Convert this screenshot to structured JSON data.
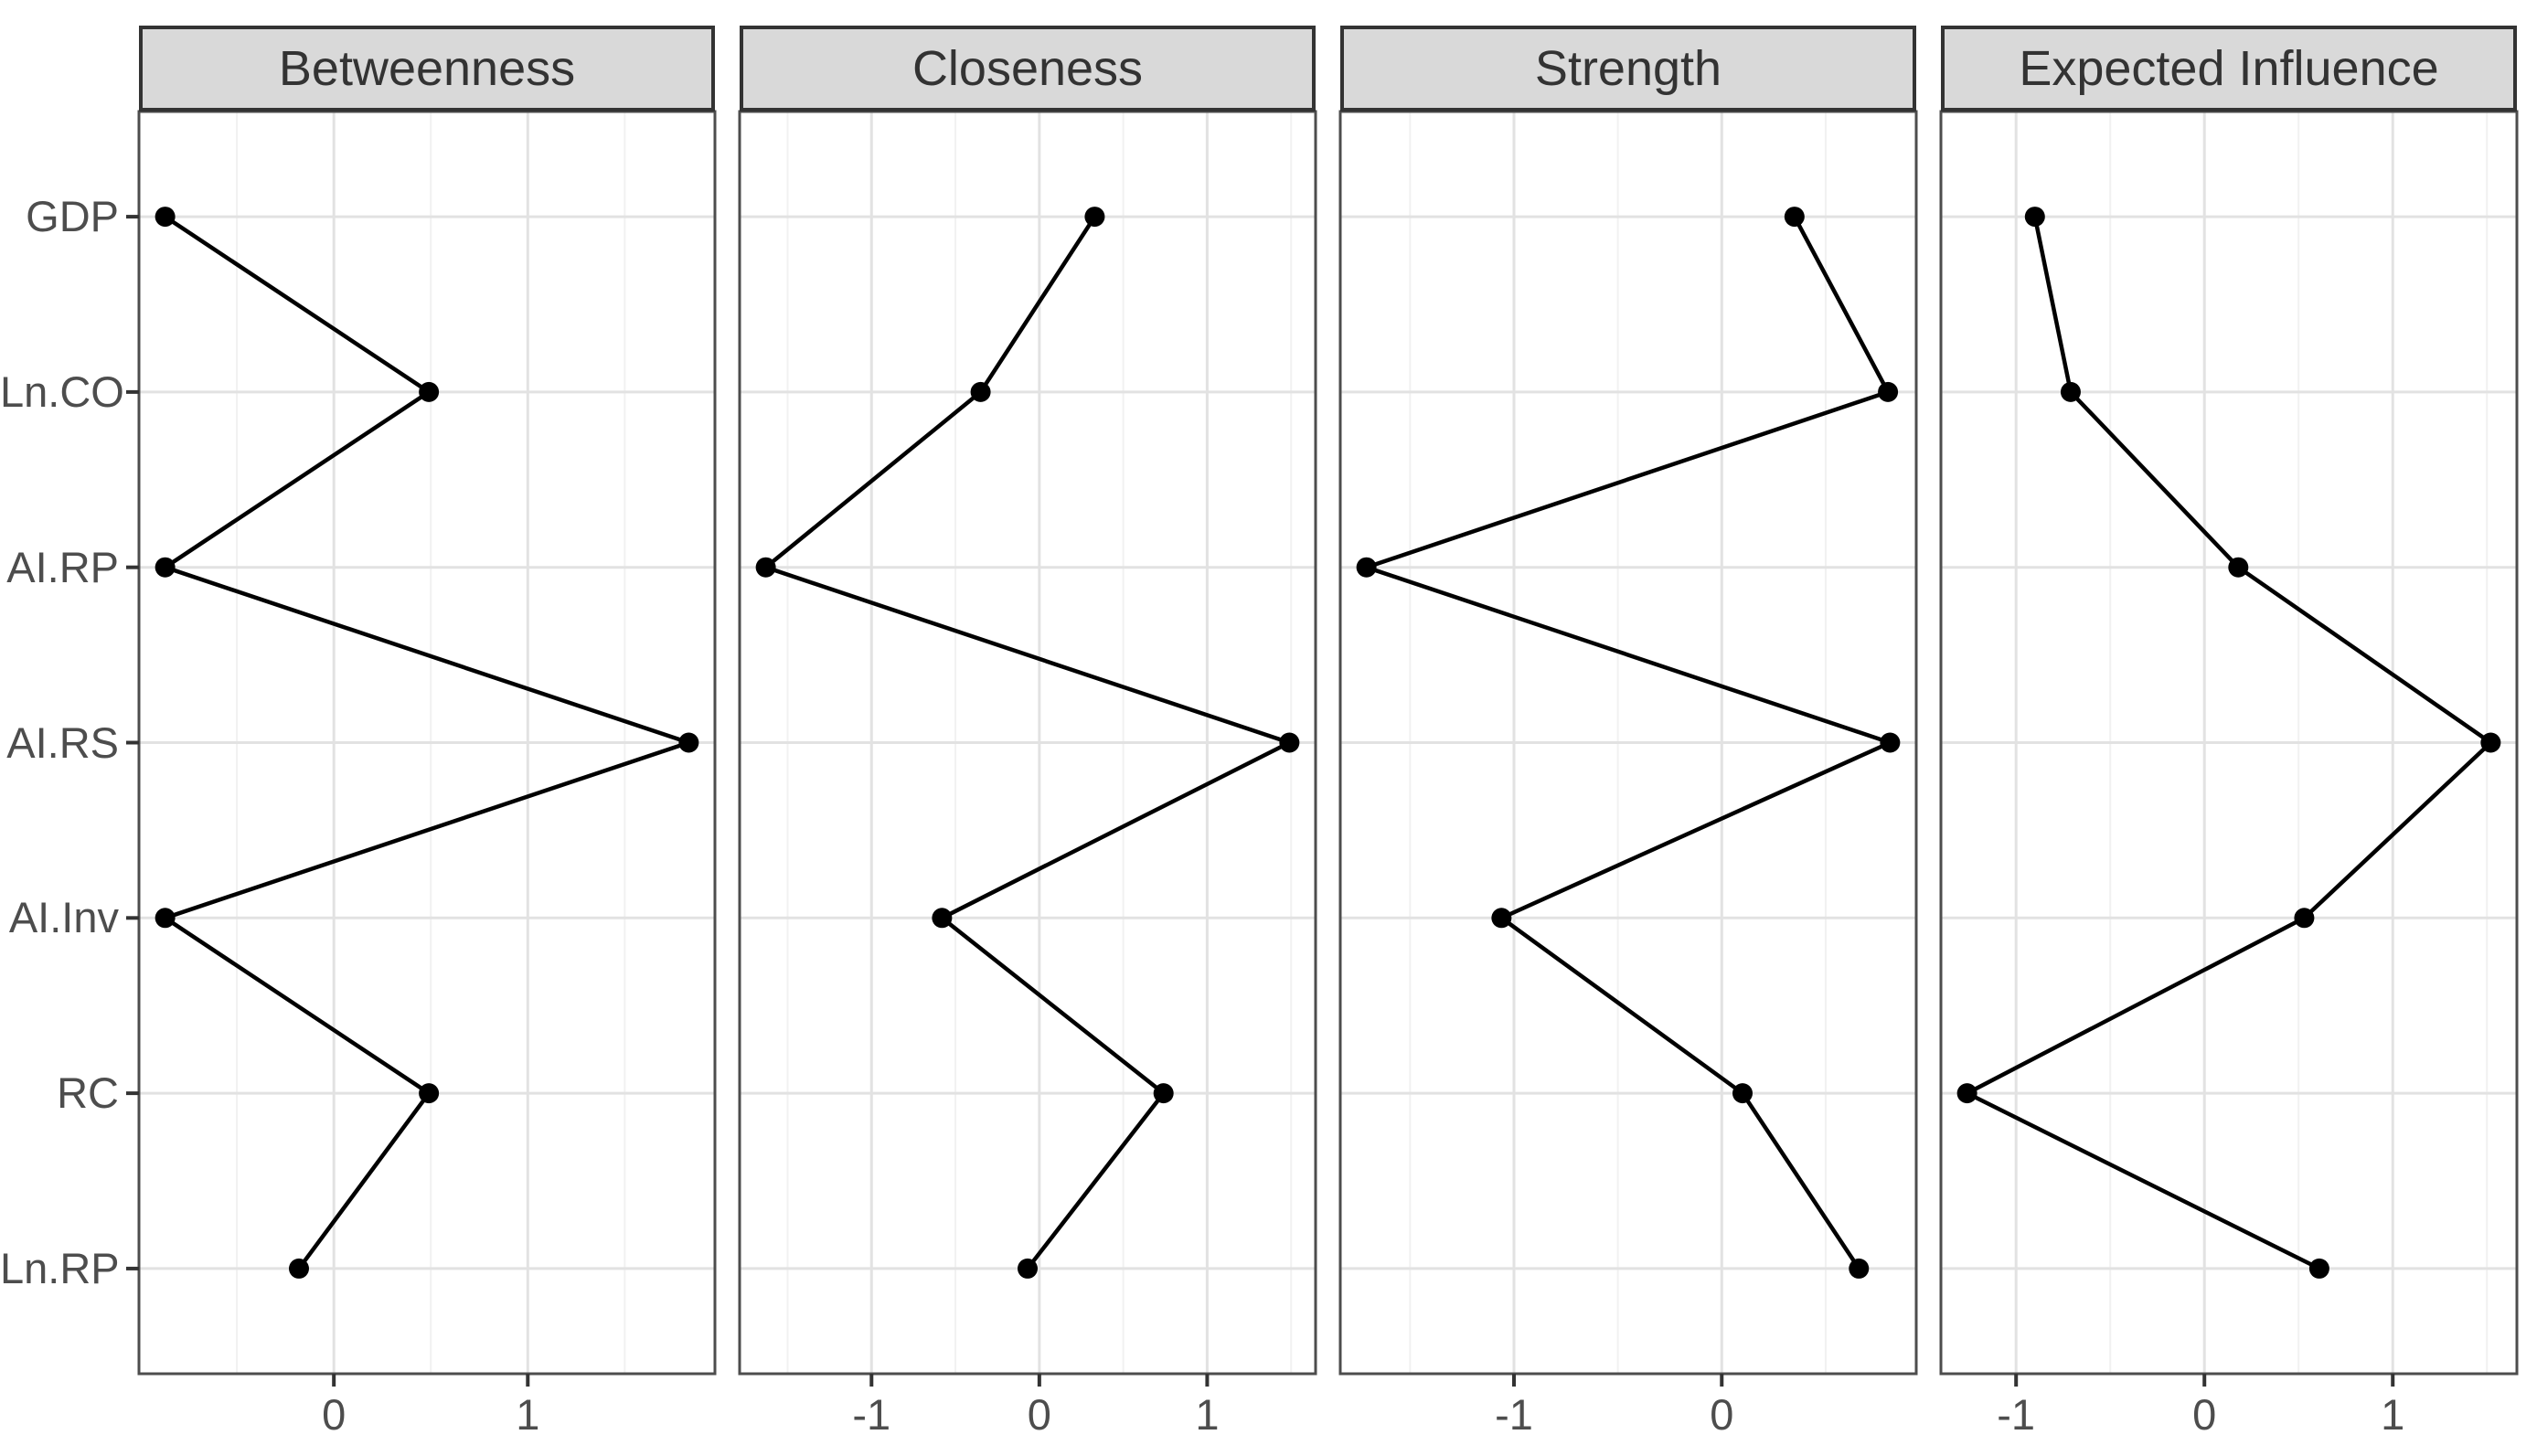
{
  "chart_data": {
    "type": "line",
    "subtype": "faceted-dot-line-centrality-plot",
    "title": "",
    "legend": "none",
    "grid": {
      "major": true,
      "minor": true,
      "minor_step": 0.5
    },
    "categories": [
      "GDP",
      "Ln.CO",
      "AI.RP",
      "AI.RS",
      "AI.Inv",
      "RC",
      "Ln.RP"
    ],
    "facets": [
      {
        "label": "Betweenness",
        "xlim": [
          -1.005,
          1.965
        ],
        "xticks": [
          0,
          1
        ],
        "values": [
          -0.87,
          0.49,
          -0.87,
          1.83,
          -0.87,
          0.49,
          -0.18
        ]
      },
      {
        "label": "Closeness",
        "xlim": [
          -1.786,
          1.646
        ],
        "xticks": [
          -1,
          0,
          1
        ],
        "values": [
          0.33,
          -0.35,
          -1.63,
          1.49,
          -0.58,
          0.74,
          -0.07
        ]
      },
      {
        "label": "Strength",
        "xlim": [
          -1.836,
          0.936
        ],
        "xticks": [
          -1,
          0
        ],
        "values": [
          0.35,
          0.8,
          -1.71,
          0.81,
          -1.06,
          0.1,
          0.66
        ]
      },
      {
        "label": "Expected Influence",
        "xlim": [
          -1.399,
          1.659
        ],
        "xticks": [
          -1,
          0,
          1
        ],
        "values": [
          -0.9,
          -0.71,
          0.18,
          1.52,
          0.53,
          -1.26,
          0.61
        ]
      }
    ],
    "colors": {
      "background": "#FFFFFF",
      "point": "#000000",
      "line": "#000000",
      "strip_bg": "#D9D9D9",
      "strip_border": "#333333",
      "strip_text": "#333333",
      "panel_border": "#4D4D4D",
      "grid_major": "#E2E2E2",
      "grid_minor": "#F1F1F1",
      "axis_text": "#4D4D4D",
      "tick": "#333333"
    }
  }
}
